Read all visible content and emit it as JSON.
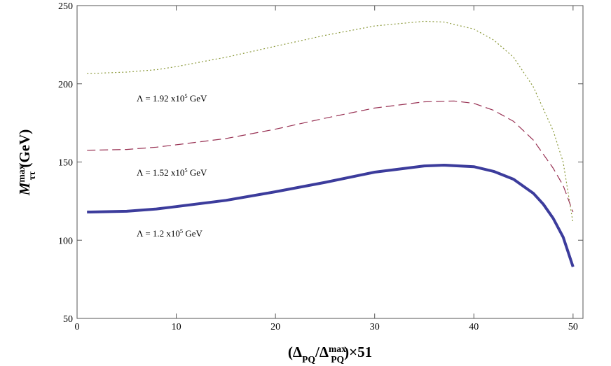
{
  "chart_data": {
    "type": "line",
    "x_label": [
      {
        "text": "(Δ"
      },
      {
        "text": "PQ",
        "sub": true
      },
      {
        "text": "/Δ"
      },
      {
        "text": "max",
        "sup": true
      },
      {
        "text": "PQ",
        "sub": true
      },
      {
        "text": ")×51"
      }
    ],
    "y_label": [
      {
        "text": "M"
      },
      {
        "text": "max",
        "sup": true
      },
      {
        "text": "ττ",
        "sub": true
      },
      {
        "text": " (GeV)"
      }
    ],
    "xlim": [
      0,
      51
    ],
    "ylim": [
      50,
      250
    ],
    "xticks": [
      0,
      10,
      20,
      30,
      40,
      50
    ],
    "yticks": [
      50,
      100,
      150,
      200,
      250
    ],
    "annotations": [
      [
        {
          "text": "Λ = 1.92 x10"
        },
        {
          "text": "5",
          "sup": true
        },
        {
          "text": " GeV"
        }
      ],
      [
        {
          "text": "Λ = 1.52 x10"
        },
        {
          "text": "5",
          "sup": true
        },
        {
          "text": " GeV"
        }
      ],
      [
        {
          "text": "Λ = 1.2 x10"
        },
        {
          "text": "5",
          "sup": true
        },
        {
          "text": " GeV"
        }
      ]
    ],
    "series": [
      {
        "color": "#8c9a3c",
        "dash": "2,3",
        "width": 1.2,
        "x": [
          1,
          5,
          8,
          10,
          15,
          20,
          25,
          30,
          35,
          37,
          40,
          42,
          44,
          46,
          48,
          49,
          50
        ],
        "values": [
          206.5,
          207.5,
          209,
          211,
          217,
          224,
          231,
          237,
          240,
          239.5,
          235,
          228,
          217,
          198,
          170,
          150,
          111
        ]
      },
      {
        "color": "#993355",
        "dash": "12,6",
        "width": 1.2,
        "x": [
          1,
          5,
          8,
          10,
          15,
          20,
          25,
          30,
          35,
          38,
          40,
          42,
          44,
          46,
          48,
          49,
          50
        ],
        "values": [
          157.5,
          158,
          159.5,
          161,
          165,
          171,
          178,
          184.5,
          188.5,
          189,
          187.5,
          183,
          176,
          164,
          146,
          135,
          118
        ]
      },
      {
        "color": "#3c3c9c",
        "dash": "none",
        "width": 4,
        "x": [
          1,
          5,
          8,
          10,
          15,
          20,
          25,
          30,
          35,
          37,
          40,
          42,
          44,
          46,
          47,
          48,
          49,
          50
        ],
        "values": [
          118,
          118.5,
          120,
          121.5,
          125.5,
          131,
          137,
          143.5,
          147.5,
          148,
          147,
          144,
          139,
          130,
          123,
          114,
          102,
          83
        ]
      }
    ]
  }
}
